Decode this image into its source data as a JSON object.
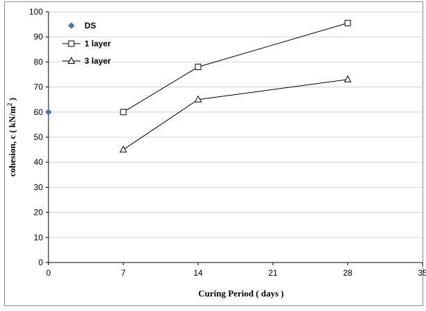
{
  "chart_data": {
    "type": "line",
    "title": "",
    "xlabel": "Curing Period ( days )",
    "ylabel_main": "cohesion, c ( kN/m",
    "ylabel_sup": "2",
    "ylabel_end": " )",
    "xlim": [
      0,
      35
    ],
    "ylim": [
      0,
      100
    ],
    "xticks": [
      0,
      7,
      14,
      21,
      28,
      35
    ],
    "yticks": [
      0,
      10,
      20,
      30,
      40,
      50,
      60,
      70,
      80,
      90,
      100
    ],
    "grid": "horizontal",
    "legend_position": "top-left",
    "series": [
      {
        "name": "DS",
        "marker": "diamond",
        "color": "#4472C4",
        "line": false,
        "x": [
          0
        ],
        "y": [
          60
        ]
      },
      {
        "name": "1 layer",
        "marker": "square",
        "color": "#000000",
        "line": true,
        "x": [
          7,
          14,
          28
        ],
        "y": [
          60,
          78,
          95.5
        ]
      },
      {
        "name": "3 layer",
        "marker": "triangle",
        "color": "#000000",
        "line": true,
        "x": [
          7,
          14,
          28
        ],
        "y": [
          45,
          65,
          73
        ]
      }
    ]
  }
}
